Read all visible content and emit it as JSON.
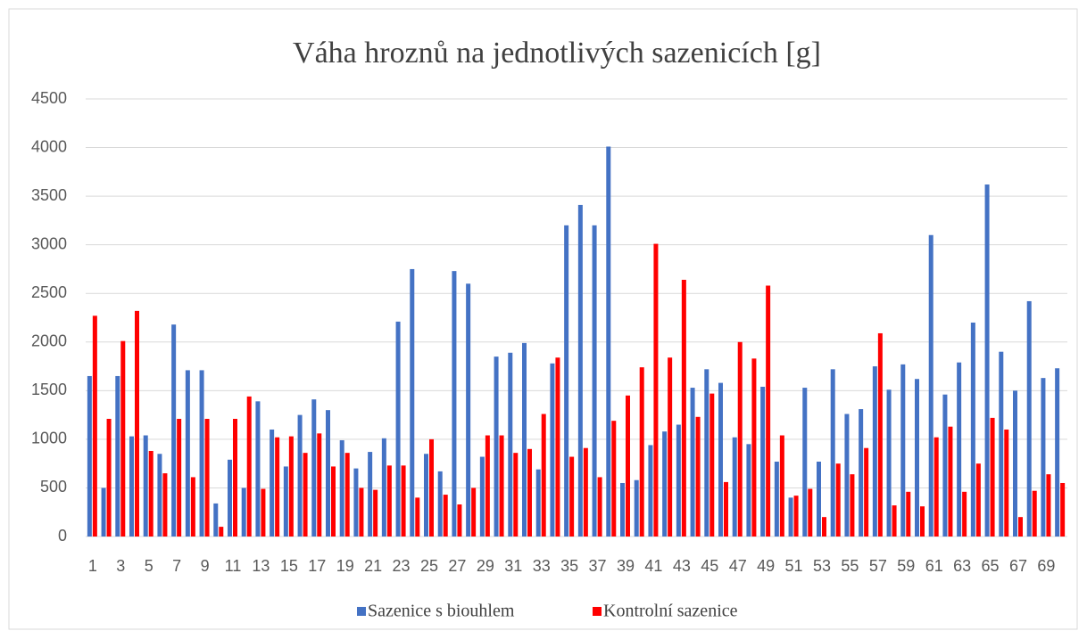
{
  "chart_data": {
    "type": "bar",
    "title": "Váha hroznů na jednotlivých sazenicích [g]",
    "categories": [
      1,
      null,
      3,
      null,
      5,
      null,
      7,
      null,
      9,
      null,
      11,
      null,
      13,
      null,
      15,
      null,
      17,
      null,
      19,
      null,
      21,
      null,
      23,
      null,
      25,
      null,
      27,
      null,
      29,
      null,
      31,
      null,
      33,
      null,
      35,
      null,
      37,
      null,
      39,
      null,
      41,
      null,
      43,
      null,
      45,
      null,
      47,
      null,
      49,
      null,
      51,
      null,
      53,
      null,
      55,
      null,
      57,
      null,
      59,
      null,
      61,
      null,
      63,
      null,
      65,
      null,
      67,
      null,
      69,
      null
    ],
    "series": [
      {
        "name": "Sazenice s biouhlem",
        "color": "#4472c4",
        "values": [
          1650,
          500,
          1650,
          1030,
          1040,
          850,
          2180,
          1710,
          1710,
          340,
          790,
          500,
          1390,
          1100,
          720,
          1250,
          1410,
          1300,
          990,
          700,
          870,
          1010,
          2210,
          2750,
          850,
          670,
          2730,
          2600,
          820,
          1850,
          1890,
          1990,
          690,
          1780,
          3200,
          3410,
          3200,
          4010,
          550,
          580,
          940,
          1080,
          1150,
          1530,
          1720,
          1580,
          1020,
          950,
          1540,
          770,
          400,
          1530,
          770,
          1720,
          1260,
          1310,
          1750,
          1510,
          1770,
          1620,
          3100,
          1460,
          1790,
          2200,
          3620,
          1900,
          1500,
          2420,
          1630,
          1730
        ]
      },
      {
        "name": "Kontrolní sazenice",
        "color": "#ff0000",
        "values": [
          2270,
          1210,
          2010,
          2320,
          880,
          650,
          1210,
          610,
          1210,
          100,
          1210,
          1440,
          490,
          1020,
          1030,
          860,
          1060,
          720,
          860,
          500,
          480,
          730,
          730,
          400,
          1000,
          430,
          330,
          500,
          1040,
          1040,
          860,
          900,
          1260,
          1840,
          820,
          910,
          610,
          1190,
          1450,
          1740,
          3010,
          1840,
          2640,
          1230,
          1470,
          560,
          2000,
          1830,
          2580,
          1040,
          420,
          490,
          200,
          750,
          640,
          910,
          2090,
          320,
          460,
          310,
          1020,
          1130,
          460,
          750,
          1220,
          1100,
          200,
          470,
          640,
          550
        ]
      }
    ],
    "ylim": [
      0,
      4500
    ],
    "yticks": [
      0,
      500,
      1000,
      1500,
      2000,
      2500,
      3000,
      3500,
      4000,
      4500
    ],
    "grid": true,
    "legend": "bottom"
  }
}
